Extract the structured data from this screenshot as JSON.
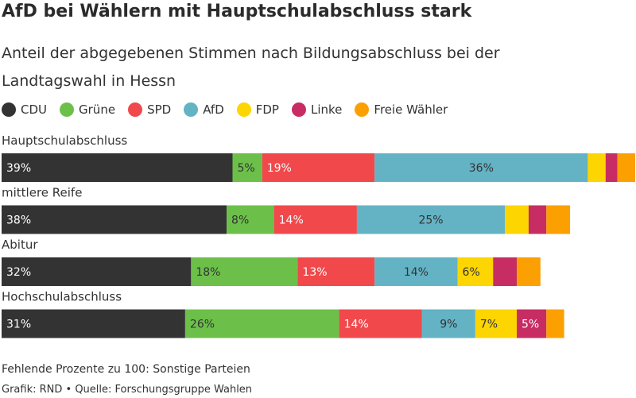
{
  "chart_data": {
    "type": "bar",
    "orientation": "horizontal",
    "stacked": true,
    "title": "AfD bei Wählern mit Hauptschulabschluss stark",
    "subtitle": "Anteil der abgegebenen Stimmen nach Bildungsabschluss bei der Landtagswahl in Hessn",
    "categories": [
      "Hauptschulabschluss",
      "mittlere Reife",
      "Abitur",
      "Hochschulabschluss"
    ],
    "series": [
      {
        "name": "CDU",
        "color": "#333333",
        "values": [
          39,
          38,
          32,
          31
        ],
        "labels": [
          "39%",
          "38%",
          "32%",
          "31%"
        ]
      },
      {
        "name": "Grüne",
        "color": "#6cc04a",
        "values": [
          5,
          8,
          18,
          26
        ],
        "labels": [
          "5%",
          "8%",
          "18%",
          "26%"
        ]
      },
      {
        "name": "SPD",
        "color": "#f1484b",
        "values": [
          19,
          14,
          13,
          14
        ],
        "labels": [
          "19%",
          "14%",
          "13%",
          "14%"
        ]
      },
      {
        "name": "AfD",
        "color": "#63b3c4",
        "values": [
          36,
          25,
          14,
          9
        ],
        "labels": [
          "36%",
          "25%",
          "14%",
          "9%"
        ]
      },
      {
        "name": "FDP",
        "color": "#fdd500",
        "values": [
          3,
          4,
          6,
          7
        ],
        "labels": [
          "",
          "",
          "6%",
          "7%"
        ]
      },
      {
        "name": "Linke",
        "color": "#c72d63",
        "values": [
          2,
          3,
          4,
          5
        ],
        "labels": [
          "",
          "",
          "",
          "5%"
        ]
      },
      {
        "name": "Freie Wähler",
        "color": "#fba000",
        "values": [
          3,
          4,
          4,
          3
        ],
        "labels": [
          "",
          "",
          "",
          ""
        ]
      }
    ],
    "xlim": [
      0,
      107
    ],
    "grid": false,
    "legend": "top-left"
  },
  "footer": {
    "note": "Fehlende Prozente zu 100: Sonstige Parteien",
    "credit": "Grafik: RND • Quelle: Forschungsgruppe Wahlen"
  }
}
